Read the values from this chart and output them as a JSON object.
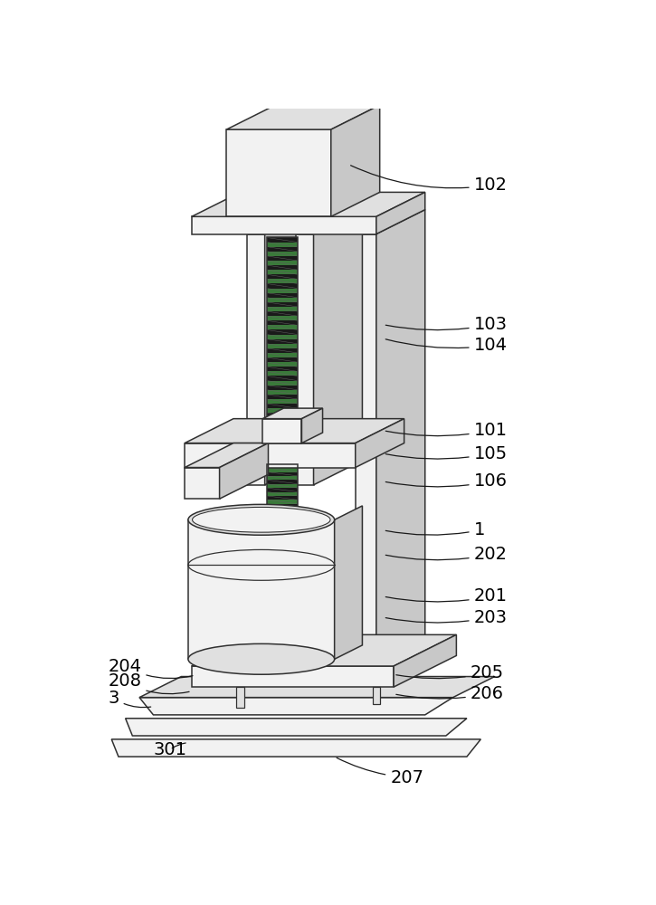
{
  "bg_color": "#ffffff",
  "line_color": "#303030",
  "face_light": "#f2f2f2",
  "face_mid": "#e0e0e0",
  "face_dark": "#c8c8c8",
  "screw_dark": "#1a1a1a",
  "screw_green": "#3a7a3a",
  "label_fontsize": 14,
  "label_color": "#000000",
  "lw": 1.1
}
